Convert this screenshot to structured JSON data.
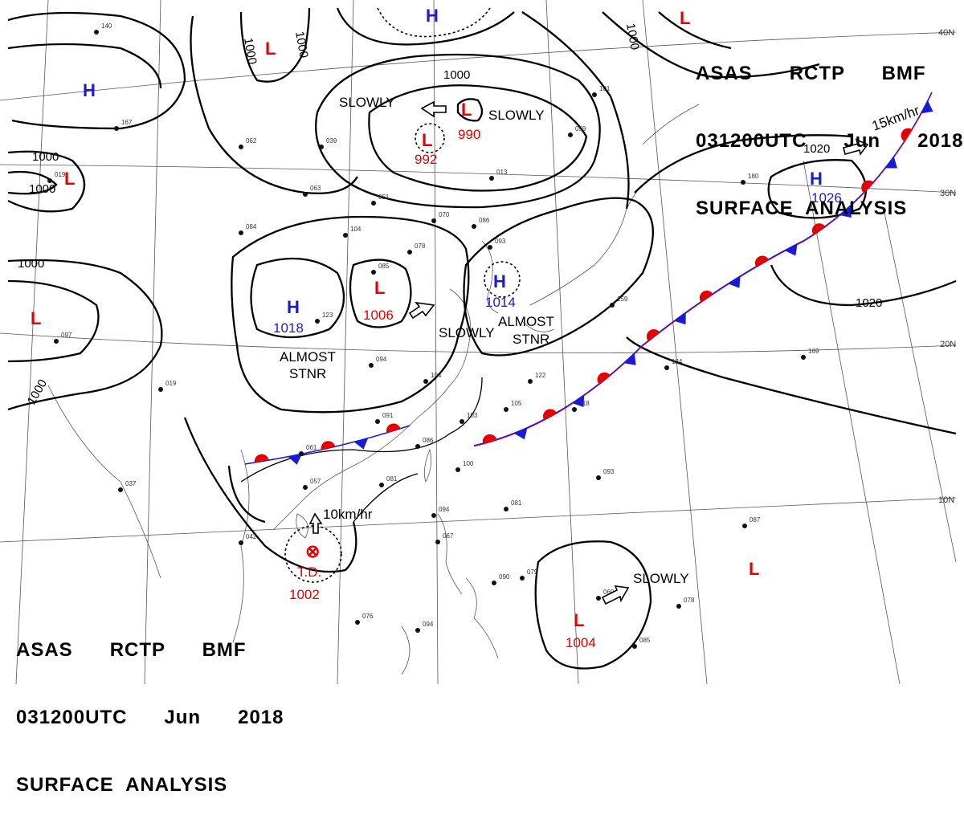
{
  "header": {
    "line1": "ASAS      RCTP      BMF",
    "line2": "031200UTC      Jun      2018",
    "line3": "SURFACE  ANALYSIS"
  },
  "latitudes": [
    "40N",
    "30N",
    "20N",
    "10N"
  ],
  "isobar_labels": [
    "1000",
    "1000",
    "1000",
    "1000",
    "1000",
    "1000",
    "1000",
    "1000",
    "1020",
    "1020"
  ],
  "systems": {
    "low_cn_north": "L",
    "low_mongolia_p1": "L",
    "p1_value": "992",
    "low_mongolia_p2": "L",
    "p2_value": "990",
    "low_nw": "L",
    "low_west": "L",
    "low_top_right": "L",
    "high_top": "H",
    "high_nw": "H",
    "high_sichuan": "H",
    "high_sichuan_value": "1018",
    "low_china": "L",
    "low_china_value": "1006",
    "high_korea": "H",
    "high_korea_value": "1014",
    "high_pacific": "H",
    "high_pacific_value": "1026",
    "td_symbol": "⊗",
    "td_label": "T.D.",
    "td_value": "1002",
    "low_philippine": "L",
    "low_philippine_value": "1004",
    "low_east_pacific": "L"
  },
  "annotations": {
    "slowly_1": "SLOWLY",
    "slowly_2": "SLOWLY",
    "slowly_3": "SLOWLY",
    "slowly_4": "SLOWLY",
    "almost_1": "ALMOST",
    "stnr_1": "STNR",
    "almost_2": "ALMOST",
    "stnr_2": "STNR",
    "speed_front": "15km/hr",
    "speed_td": "10km/hr"
  },
  "stations": [
    {
      "t": "167"
    },
    {
      "t": "019"
    },
    {
      "t": "062"
    },
    {
      "t": "039"
    },
    {
      "t": "063"
    },
    {
      "t": "051"
    },
    {
      "t": "070"
    },
    {
      "t": "086"
    },
    {
      "t": "084"
    },
    {
      "t": "104"
    },
    {
      "t": "078"
    },
    {
      "t": "085"
    },
    {
      "t": "093"
    },
    {
      "t": "013"
    },
    {
      "t": "059"
    },
    {
      "t": "097"
    },
    {
      "t": "019"
    },
    {
      "t": "094"
    },
    {
      "t": "104"
    },
    {
      "t": "122"
    },
    {
      "t": "105"
    },
    {
      "t": "118"
    },
    {
      "t": "103"
    },
    {
      "t": "091"
    },
    {
      "t": "061"
    },
    {
      "t": "086"
    },
    {
      "t": "100"
    },
    {
      "t": "081"
    },
    {
      "t": "057"
    },
    {
      "t": "037"
    },
    {
      "t": "042"
    },
    {
      "t": "094"
    },
    {
      "t": "067"
    },
    {
      "t": "081"
    },
    {
      "t": "093"
    },
    {
      "t": "087"
    },
    {
      "t": "090"
    },
    {
      "t": "079"
    },
    {
      "t": "060"
    },
    {
      "t": "078"
    },
    {
      "t": "085"
    },
    {
      "t": "076"
    },
    {
      "t": "094"
    },
    {
      "t": "169"
    },
    {
      "t": "134"
    },
    {
      "t": "180"
    },
    {
      "t": "159"
    },
    {
      "t": "101"
    },
    {
      "t": "140"
    },
    {
      "t": "123"
    }
  ],
  "colors": {
    "warm_front": "#e60000",
    "cold_front": "#1a1ad6",
    "isobar": "#000000",
    "coast": "#444444",
    "grid": "#555555"
  }
}
